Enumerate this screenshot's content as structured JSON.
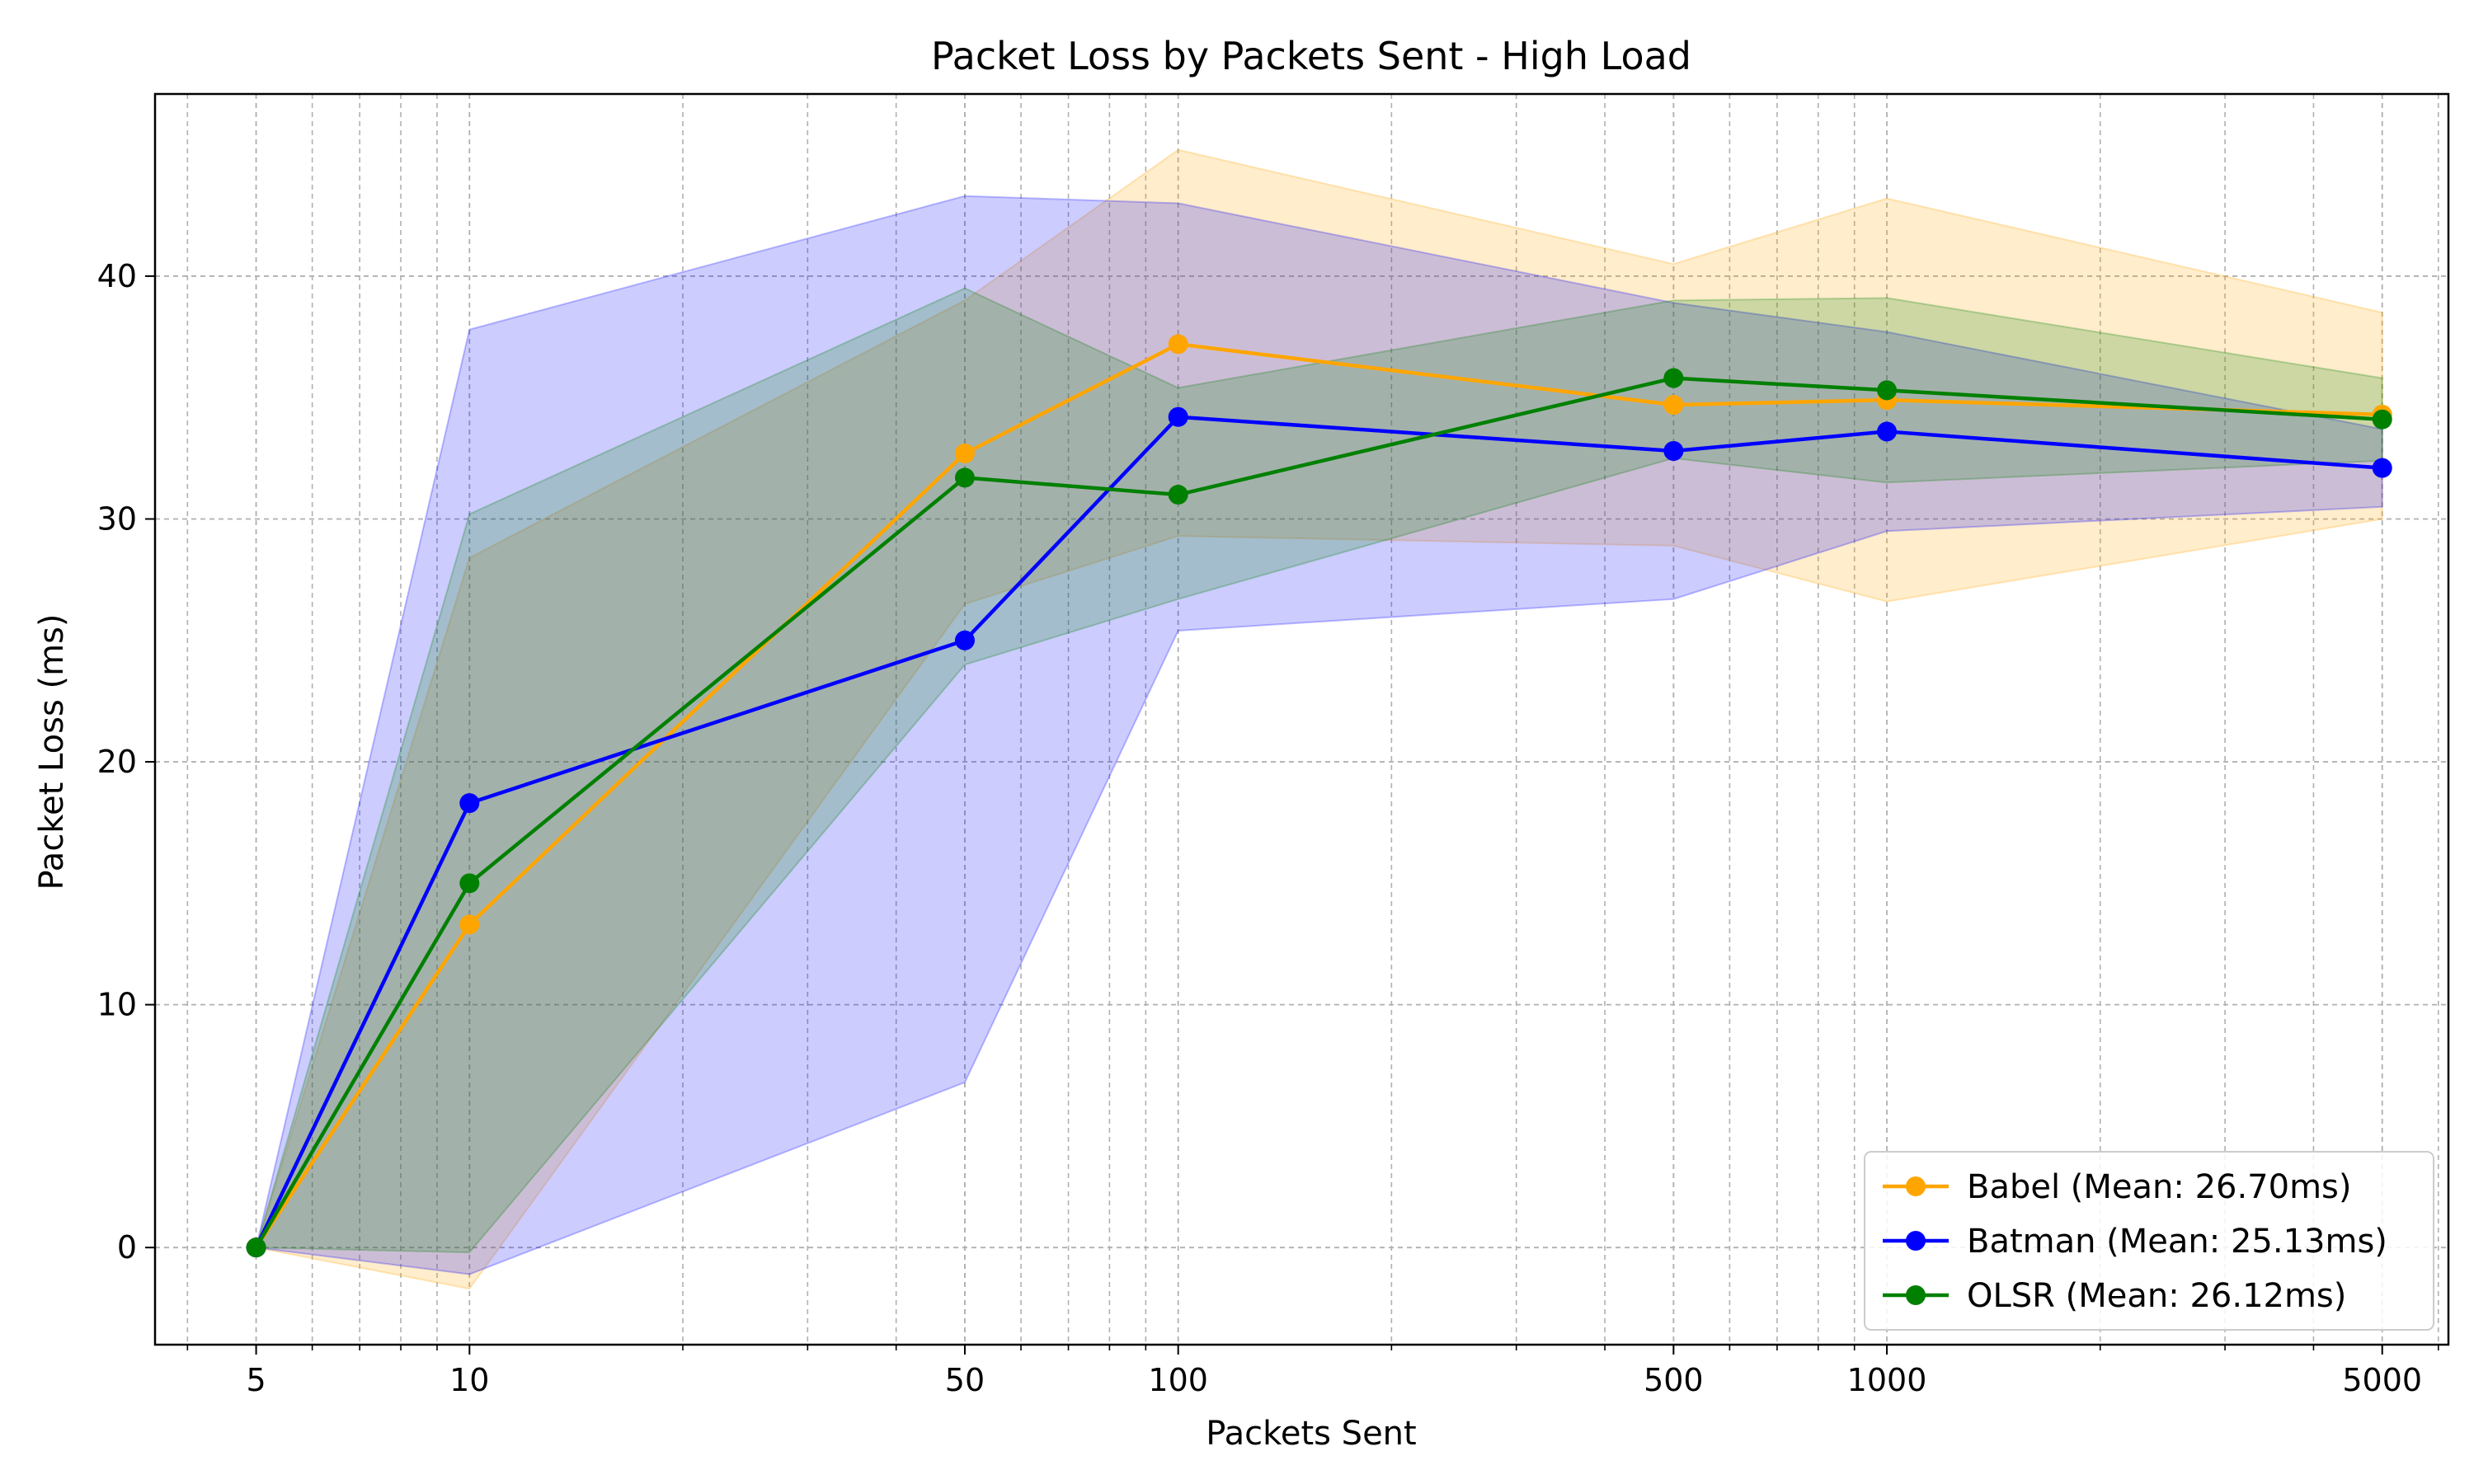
{
  "chart_data": {
    "type": "line",
    "title": "Packet Loss by Packets Sent - High Load",
    "xlabel": "Packets Sent",
    "ylabel": "Packet Loss (ms)",
    "x_scale": "log",
    "x": [
      5,
      10,
      50,
      100,
      500,
      1000,
      5000
    ],
    "x_tick_labels": [
      "5",
      "10",
      "50",
      "100",
      "500",
      "1000",
      "5000"
    ],
    "xlim": [
      3.6,
      6200
    ],
    "ylim": [
      -4,
      47.5
    ],
    "y_ticks": [
      0,
      10,
      20,
      30,
      40
    ],
    "grid": true,
    "legend_position": "bottom-right",
    "series": [
      {
        "name": "Babel (Mean: 26.70ms)",
        "color": "#FFA500",
        "values": [
          0,
          13.3,
          32.7,
          37.2,
          34.7,
          34.9,
          34.3
        ],
        "band_upper": [
          0,
          28.4,
          39.0,
          45.2,
          40.5,
          43.2,
          38.5
        ],
        "band_lower": [
          0,
          -1.7,
          26.5,
          29.3,
          28.9,
          26.6,
          30.0
        ]
      },
      {
        "name": "Batman (Mean: 25.13ms)",
        "color": "#0000FF",
        "values": [
          0,
          18.3,
          25.0,
          34.2,
          32.8,
          33.6,
          32.1
        ],
        "band_upper": [
          0,
          37.8,
          43.3,
          43.0,
          38.9,
          37.7,
          33.7
        ],
        "band_lower": [
          0,
          -1.1,
          6.8,
          25.4,
          26.7,
          29.5,
          30.5
        ]
      },
      {
        "name": "OLSR (Mean: 26.12ms)",
        "color": "#008000",
        "values": [
          0,
          15.0,
          31.7,
          31.0,
          35.8,
          35.3,
          34.1
        ],
        "band_upper": [
          0,
          30.2,
          39.5,
          35.4,
          39.0,
          39.1,
          35.8
        ],
        "band_lower": [
          0,
          -0.2,
          24.0,
          26.7,
          32.5,
          31.5,
          32.4
        ]
      }
    ]
  }
}
